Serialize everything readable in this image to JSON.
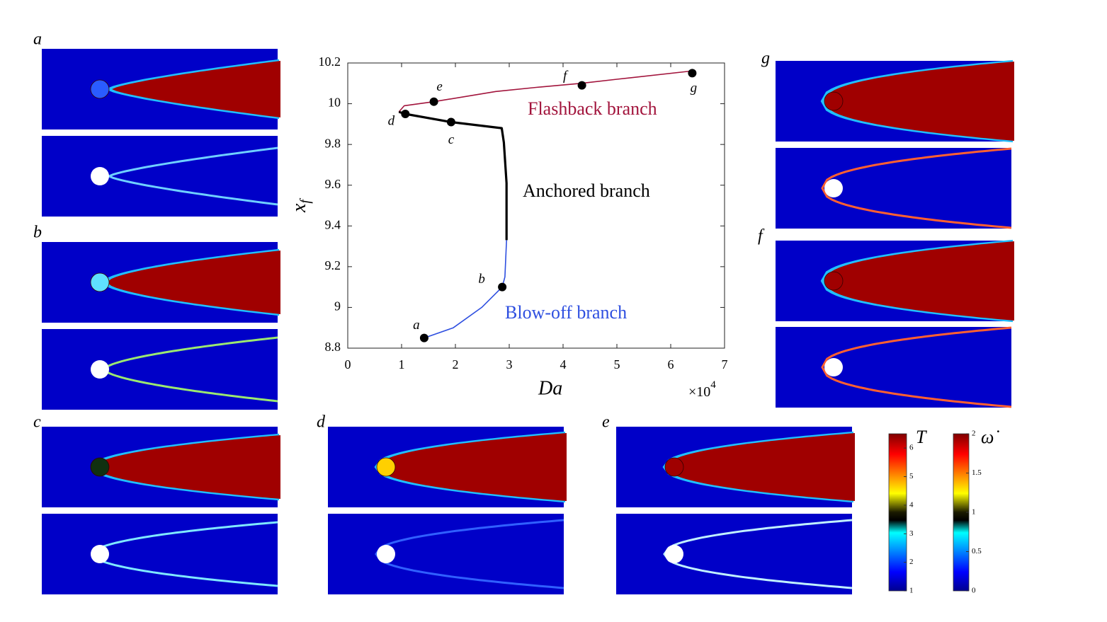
{
  "chart_data": {
    "type": "line",
    "xlabel": "Da",
    "ylabel": {
      "base": "x",
      "sub": "f"
    },
    "x_multiplier": {
      "base": "×10",
      "sup": "4"
    },
    "xlim": [
      0,
      7
    ],
    "xticks": [
      0,
      1,
      2,
      3,
      4,
      5,
      6,
      7
    ],
    "ylim": [
      8.8,
      10.2
    ],
    "yticks": [
      8.8,
      9,
      9.2,
      9.4,
      9.6,
      9.8,
      10,
      10.2
    ],
    "series": [
      {
        "name": "Flashback branch",
        "color": "#a2143c",
        "x": [
          0.95,
          1.05,
          1.6,
          2.75,
          3.5,
          4.33,
          5.0,
          6.37
        ],
        "values": [
          9.96,
          9.99,
          10.01,
          10.06,
          10.08,
          10.1,
          10.12,
          10.16
        ]
      },
      {
        "name": "Anchored branch",
        "color": "#000000",
        "x": [
          0.95,
          1.07,
          1.92,
          2.86,
          2.9,
          2.95,
          2.95
        ],
        "values": [
          9.96,
          9.95,
          9.91,
          9.88,
          9.81,
          9.61,
          9.33
        ]
      },
      {
        "name": "Blow-off branch",
        "color": "#2e4fe0",
        "x": [
          2.95,
          2.92,
          2.87,
          2.49,
          1.96,
          1.42
        ],
        "values": [
          9.33,
          9.15,
          9.1,
          9.0,
          8.9,
          8.85
        ]
      }
    ],
    "points": {
      "labels": [
        "a",
        "b",
        "c",
        "d",
        "e",
        "f",
        "g"
      ],
      "x": [
        1.42,
        2.87,
        1.92,
        1.07,
        1.6,
        4.35,
        6.4
      ],
      "values": [
        8.85,
        9.1,
        9.91,
        9.95,
        10.01,
        10.09,
        10.15
      ]
    }
  },
  "panels": [
    {
      "label": "a"
    },
    {
      "label": "b"
    },
    {
      "label": "c"
    },
    {
      "label": "d"
    },
    {
      "label": "e"
    },
    {
      "label": "g"
    },
    {
      "label": "f"
    }
  ],
  "colorbars": [
    {
      "title": "T",
      "ylim": [
        1,
        6.5
      ],
      "ticks": [
        1,
        2,
        3,
        4,
        5,
        6
      ]
    },
    {
      "title": "ω̇",
      "ylim": [
        0,
        2
      ],
      "ticks": [
        0,
        0.5,
        1,
        1.5,
        2
      ]
    }
  ]
}
